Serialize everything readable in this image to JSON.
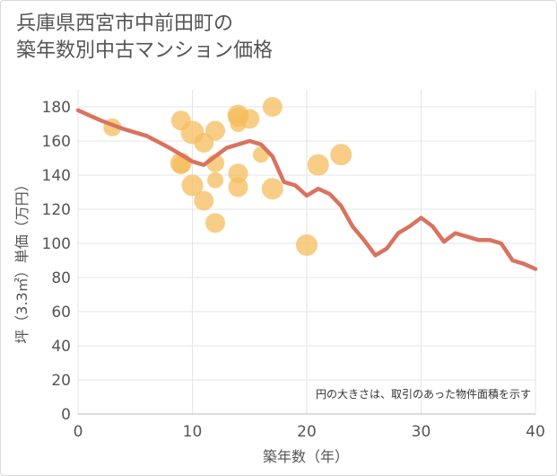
{
  "title_line1": "兵庫県西宮市中前田町の",
  "title_line2": "築年数別中古マンション価格",
  "chart_data": {
    "type": "scatter+line",
    "xlabel": "築年数（年）",
    "ylabel": "坪（3.3㎡）単価（万円）",
    "xlim": [
      0,
      40
    ],
    "ylim": [
      0,
      190
    ],
    "x_ticks": [
      0,
      10,
      20,
      30,
      40
    ],
    "y_ticks": [
      0,
      20,
      40,
      60,
      80,
      100,
      120,
      140,
      160,
      180
    ],
    "note": "円の大きさは、取引のあった物件面積を示す",
    "colors": {
      "line": "#d9735f",
      "bubble": "#f5bd5e",
      "grid": "#e6e6e6"
    },
    "line": {
      "x": [
        0,
        2,
        4,
        6,
        8,
        10,
        11,
        12,
        13,
        14,
        15,
        16,
        17,
        18,
        19,
        20,
        21,
        22,
        23,
        24,
        25,
        26,
        27,
        28,
        29,
        30,
        31,
        32,
        33,
        34,
        35,
        36,
        37,
        38,
        39,
        40
      ],
      "y": [
        178,
        172,
        167,
        163,
        156,
        148,
        146,
        151,
        156,
        158,
        160,
        158,
        151,
        136,
        134,
        128,
        132,
        129,
        122,
        110,
        102,
        93,
        97,
        106,
        110,
        115,
        110,
        101,
        106,
        104,
        102,
        102,
        100,
        90,
        88,
        85
      ]
    },
    "bubbles": [
      {
        "x": 3,
        "y": 168,
        "size": 20
      },
      {
        "x": 9,
        "y": 172,
        "size": 22
      },
      {
        "x": 9,
        "y": 147,
        "size": 24
      },
      {
        "x": 9,
        "y": 146,
        "size": 20
      },
      {
        "x": 10,
        "y": 165,
        "size": 26
      },
      {
        "x": 10,
        "y": 134,
        "size": 24
      },
      {
        "x": 11,
        "y": 159,
        "size": 22
      },
      {
        "x": 11,
        "y": 125,
        "size": 22
      },
      {
        "x": 12,
        "y": 166,
        "size": 22
      },
      {
        "x": 12,
        "y": 147,
        "size": 20
      },
      {
        "x": 12,
        "y": 137,
        "size": 18
      },
      {
        "x": 12,
        "y": 112,
        "size": 22
      },
      {
        "x": 14,
        "y": 175,
        "size": 24
      },
      {
        "x": 14,
        "y": 174,
        "size": 22
      },
      {
        "x": 14,
        "y": 170,
        "size": 18
      },
      {
        "x": 14,
        "y": 141,
        "size": 22
      },
      {
        "x": 14,
        "y": 133,
        "size": 22
      },
      {
        "x": 15,
        "y": 173,
        "size": 22
      },
      {
        "x": 16,
        "y": 152,
        "size": 18
      },
      {
        "x": 17,
        "y": 180,
        "size": 22
      },
      {
        "x": 17,
        "y": 132,
        "size": 24
      },
      {
        "x": 20,
        "y": 99,
        "size": 24
      },
      {
        "x": 21,
        "y": 146,
        "size": 24
      },
      {
        "x": 23,
        "y": 152,
        "size": 24
      }
    ]
  }
}
